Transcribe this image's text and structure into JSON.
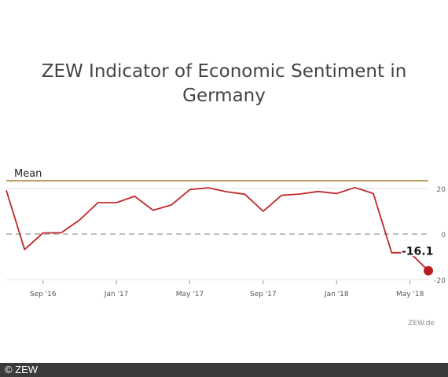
{
  "title": "ZEW Indicator of Economic Sentiment in\nGermany",
  "source_label": "ZEW.de",
  "copyright": "© ZEW",
  "colors": {
    "series": "#c0282d",
    "mean": "#b59a54",
    "zero": "#aaaaaa",
    "grid": "#e2e2e2"
  },
  "chart_data": {
    "type": "line",
    "title": "ZEW Indicator of Economic Sentiment in Germany",
    "xlabel": "",
    "ylabel": "",
    "ylim": [
      -20,
      20
    ],
    "yticks": [
      20,
      0,
      -20
    ],
    "ytick_labels": [
      "20",
      "0",
      "-20"
    ],
    "xtick_labels": [
      "Sep '16",
      "Jan '17",
      "May '17",
      "Sep '17",
      "Jan '18",
      "May '18"
    ],
    "mean": {
      "label": "Mean",
      "value": 23.4
    },
    "zero_line": true,
    "series": [
      {
        "values": [
          19.2,
          -6.8,
          0.5,
          0.6,
          6.2,
          13.8,
          13.8,
          16.6,
          10.4,
          12.8,
          19.5,
          20.3,
          18.6,
          17.5,
          10.0,
          17.0,
          17.6,
          18.7,
          17.8,
          20.4,
          17.8,
          -8.2,
          -8.2,
          -16.1
        ],
        "last_label": "-16.1"
      }
    ]
  }
}
